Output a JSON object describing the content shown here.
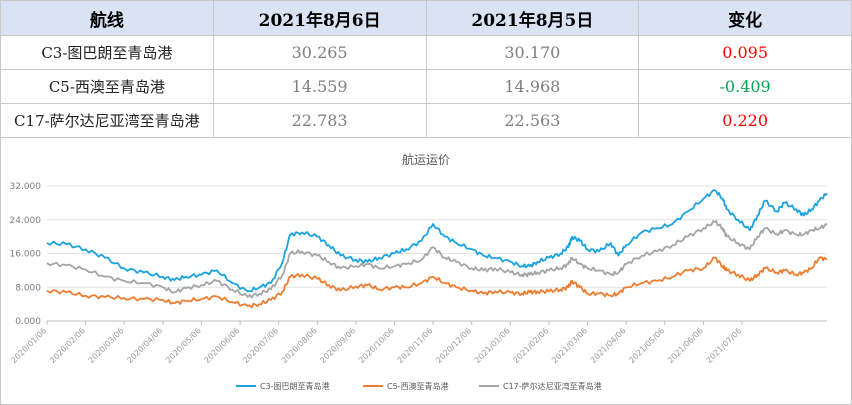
{
  "table": {
    "headers": [
      "航线",
      "2021年8月6日",
      "2021年8月5日",
      "变化"
    ],
    "rows": [
      {
        "route": "C3-图巴朗至青岛港",
        "aug6": "30.265",
        "aug5": "30.170",
        "change": "0.095",
        "direction": "up"
      },
      {
        "route": "C5-西澳至青岛港",
        "aug6": "14.559",
        "aug5": "14.968",
        "change": "-0.409",
        "direction": "down"
      },
      {
        "route": "C17-萨尔达尼亚湾至青岛港",
        "aug6": "22.783",
        "aug5": "22.563",
        "change": "0.220",
        "direction": "up"
      }
    ],
    "colors": {
      "up": "#ff0000",
      "down": "#00a651",
      "header_bg": "#dae3f3"
    }
  },
  "chart_data": {
    "type": "line",
    "title": "航运运价",
    "ylim": [
      0,
      32
    ],
    "y_ticks": [
      "0.000",
      "8.000",
      "16.000",
      "24.000",
      "32.000"
    ],
    "x_ticks": [
      "2020/01/06",
      "2020/02/06",
      "2020/03/06",
      "2020/04/06",
      "2020/05/06",
      "2020/06/06",
      "2020/07/06",
      "2020/08/06",
      "2020/09/06",
      "2020/10/06",
      "2020/11/06",
      "2020/12/06",
      "2021/01/06",
      "2021/02/06",
      "2021/03/06",
      "2021/04/06",
      "2021/05/06",
      "2021/06/06",
      "2021/07/06"
    ],
    "legend_position": "bottom",
    "grid": true,
    "series": [
      {
        "name": "C3-图巴朗至青岛港",
        "color": "#1aa3e0",
        "anchors": [
          [
            0,
            18.5
          ],
          [
            0.5,
            18.2
          ],
          [
            1,
            17
          ],
          [
            1.5,
            15
          ],
          [
            2,
            12.5
          ],
          [
            2.5,
            11.5
          ],
          [
            3,
            10.5
          ],
          [
            3.3,
            9.7
          ],
          [
            3.6,
            10.5
          ],
          [
            4,
            11
          ],
          [
            4.4,
            12
          ],
          [
            4.8,
            9
          ],
          [
            5.2,
            7
          ],
          [
            5.5,
            8
          ],
          [
            5.8,
            9
          ],
          [
            6.1,
            14
          ],
          [
            6.3,
            20.5
          ],
          [
            6.6,
            21
          ],
          [
            7,
            20
          ],
          [
            7.3,
            18
          ],
          [
            7.6,
            15.5
          ],
          [
            8,
            14.5
          ],
          [
            8.3,
            14
          ],
          [
            8.6,
            15
          ],
          [
            9,
            16
          ],
          [
            9.3,
            17
          ],
          [
            9.7,
            19
          ],
          [
            10,
            23
          ],
          [
            10.3,
            20
          ],
          [
            10.6,
            18.5
          ],
          [
            11,
            17
          ],
          [
            11.3,
            15.5
          ],
          [
            11.6,
            15
          ],
          [
            12,
            14
          ],
          [
            12.3,
            13
          ],
          [
            12.5,
            13
          ],
          [
            12.7,
            14
          ],
          [
            13,
            15
          ],
          [
            13.3,
            16
          ],
          [
            13.5,
            17.5
          ],
          [
            13.6,
            20
          ],
          [
            13.8,
            19
          ],
          [
            14,
            17
          ],
          [
            14.3,
            16.5
          ],
          [
            14.6,
            18.5
          ],
          [
            14.8,
            15.5
          ],
          [
            15,
            18
          ],
          [
            15.4,
            21
          ],
          [
            15.8,
            22
          ],
          [
            16.2,
            23
          ],
          [
            16.6,
            26
          ],
          [
            17,
            29
          ],
          [
            17.3,
            31
          ],
          [
            17.5,
            29
          ],
          [
            17.6,
            26.5
          ],
          [
            17.9,
            24
          ],
          [
            18.2,
            21.5
          ],
          [
            18.4,
            25
          ],
          [
            18.6,
            28.5
          ],
          [
            18.9,
            26
          ],
          [
            19.1,
            28
          ],
          [
            19.4,
            26.5
          ],
          [
            19.6,
            25
          ],
          [
            19.8,
            26.5
          ],
          [
            20,
            28.5
          ],
          [
            20.2,
            30.265
          ]
        ]
      },
      {
        "name": "C5-西澳至青岛港",
        "color": "#ed7d31",
        "anchors": [
          [
            0,
            7.2
          ],
          [
            0.5,
            6.8
          ],
          [
            1,
            6
          ],
          [
            1.5,
            5.7
          ],
          [
            2,
            5.4
          ],
          [
            2.5,
            5.2
          ],
          [
            3,
            5
          ],
          [
            3.3,
            4.2
          ],
          [
            3.6,
            4.8
          ],
          [
            4,
            5.2
          ],
          [
            4.4,
            5.8
          ],
          [
            4.8,
            4.5
          ],
          [
            5.2,
            3.5
          ],
          [
            5.5,
            4
          ],
          [
            5.8,
            5
          ],
          [
            6.1,
            7
          ],
          [
            6.3,
            10.5
          ],
          [
            6.6,
            11
          ],
          [
            7,
            10
          ],
          [
            7.3,
            8.5
          ],
          [
            7.6,
            7.2
          ],
          [
            8,
            8.2
          ],
          [
            8.3,
            8.5
          ],
          [
            8.6,
            7.5
          ],
          [
            9,
            8
          ],
          [
            9.3,
            8
          ],
          [
            9.7,
            9
          ],
          [
            10,
            10.5
          ],
          [
            10.3,
            9
          ],
          [
            10.6,
            8
          ],
          [
            11,
            7.2
          ],
          [
            11.3,
            6.5
          ],
          [
            11.6,
            7
          ],
          [
            12,
            6.7
          ],
          [
            12.3,
            6.5
          ],
          [
            12.5,
            6.8
          ],
          [
            12.7,
            7
          ],
          [
            13,
            7
          ],
          [
            13.3,
            7.5
          ],
          [
            13.5,
            8
          ],
          [
            13.6,
            9.5
          ],
          [
            13.8,
            8
          ],
          [
            14,
            6.5
          ],
          [
            14.3,
            6.5
          ],
          [
            14.6,
            6
          ],
          [
            14.8,
            6.5
          ],
          [
            15,
            8
          ],
          [
            15.4,
            9
          ],
          [
            15.8,
            9.5
          ],
          [
            16.2,
            10.5
          ],
          [
            16.6,
            12
          ],
          [
            17,
            12.5
          ],
          [
            17.3,
            15
          ],
          [
            17.5,
            13
          ],
          [
            17.6,
            12
          ],
          [
            17.9,
            11
          ],
          [
            18.2,
            9.5
          ],
          [
            18.4,
            11
          ],
          [
            18.6,
            12.5
          ],
          [
            18.9,
            11.5
          ],
          [
            19.1,
            12
          ],
          [
            19.4,
            11
          ],
          [
            19.6,
            11.5
          ],
          [
            19.8,
            12.5
          ],
          [
            20,
            15
          ],
          [
            20.2,
            14.559
          ]
        ]
      },
      {
        "name": "C17-萨尔达尼亚湾至青岛港",
        "color": "#a5a5a5",
        "anchors": [
          [
            0,
            13.7
          ],
          [
            0.5,
            13.2
          ],
          [
            1,
            12.2
          ],
          [
            1.5,
            10.5
          ],
          [
            2,
            9.5
          ],
          [
            2.5,
            9
          ],
          [
            3,
            8
          ],
          [
            3.3,
            6.8
          ],
          [
            3.6,
            7.8
          ],
          [
            4,
            8.5
          ],
          [
            4.4,
            9.5
          ],
          [
            4.8,
            7.5
          ],
          [
            5.2,
            5.7
          ],
          [
            5.5,
            6.5
          ],
          [
            5.8,
            7.5
          ],
          [
            6.1,
            11
          ],
          [
            6.3,
            16
          ],
          [
            6.6,
            16.5
          ],
          [
            7,
            15.5
          ],
          [
            7.3,
            14
          ],
          [
            7.6,
            12.5
          ],
          [
            8,
            13
          ],
          [
            8.3,
            13.5
          ],
          [
            8.6,
            12.5
          ],
          [
            9,
            13
          ],
          [
            9.3,
            13.5
          ],
          [
            9.7,
            14.5
          ],
          [
            10,
            17.5
          ],
          [
            10.3,
            15
          ],
          [
            10.6,
            14
          ],
          [
            11,
            12.5
          ],
          [
            11.3,
            12
          ],
          [
            11.6,
            12.5
          ],
          [
            12,
            11.5
          ],
          [
            12.3,
            11
          ],
          [
            12.5,
            11
          ],
          [
            12.7,
            11.5
          ],
          [
            13,
            12
          ],
          [
            13.3,
            12.5
          ],
          [
            13.5,
            13.5
          ],
          [
            13.6,
            15
          ],
          [
            13.8,
            13.5
          ],
          [
            14,
            12.5
          ],
          [
            14.3,
            12
          ],
          [
            14.6,
            11
          ],
          [
            14.8,
            11.5
          ],
          [
            15,
            13.5
          ],
          [
            15.4,
            15.5
          ],
          [
            15.8,
            16.5
          ],
          [
            16.2,
            18
          ],
          [
            16.6,
            20
          ],
          [
            17,
            22
          ],
          [
            17.3,
            23.5
          ],
          [
            17.5,
            22
          ],
          [
            17.6,
            20
          ],
          [
            17.9,
            18.5
          ],
          [
            18.2,
            17
          ],
          [
            18.4,
            20
          ],
          [
            18.6,
            22
          ],
          [
            18.9,
            20.5
          ],
          [
            19.1,
            21.5
          ],
          [
            19.4,
            20.5
          ],
          [
            19.6,
            20.5
          ],
          [
            19.8,
            21.5
          ],
          [
            20,
            22
          ],
          [
            20.2,
            22.783
          ]
        ]
      }
    ]
  }
}
